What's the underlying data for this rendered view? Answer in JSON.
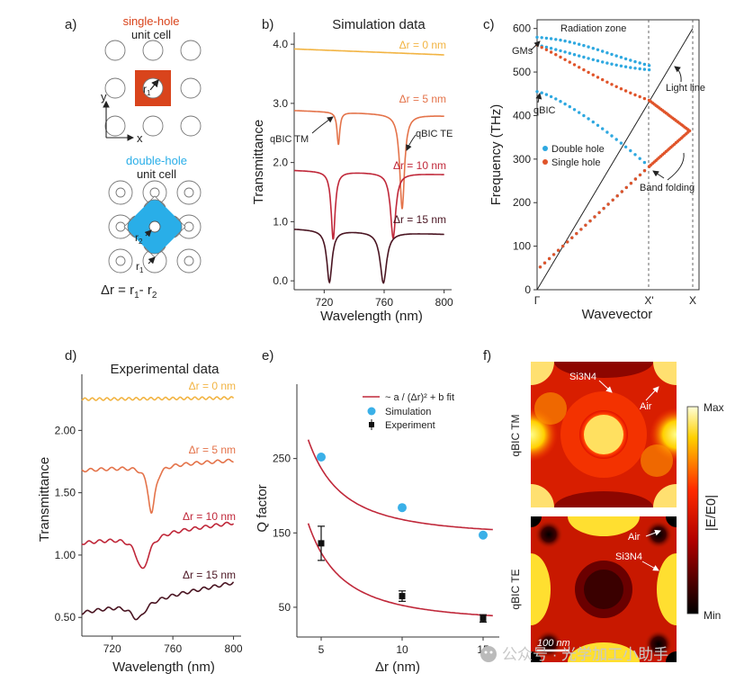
{
  "chart_data": [
    {
      "panel": "a)",
      "type": "diagram",
      "single_hole": {
        "title": "single-hole",
        "subtitle": "unit cell",
        "radius_label": "r",
        "radius_sub": "1",
        "color": "#d9441c"
      },
      "axes": {
        "x": "x",
        "y": "y"
      },
      "double_hole": {
        "title": "double-hole",
        "subtitle": "unit cell",
        "r2_label": "r",
        "r2_sub": "2",
        "r1_label": "r",
        "r1_sub": "1",
        "color": "#29aee8"
      },
      "formula": {
        "lhs": "Δr = r",
        "r1_sub": "1",
        "mid": "- r",
        "r2_sub": "2"
      }
    },
    {
      "panel": "b)",
      "type": "line",
      "title": "Simulation data",
      "xlabel": "Wavelength (nm)",
      "ylabel": "Transmittance",
      "xlim": [
        700,
        805
      ],
      "ylim": [
        -0.15,
        4.2
      ],
      "xticks": [
        "720",
        "760",
        "800"
      ],
      "yticks": [
        "0.0",
        "1.0",
        "2.0",
        "3.0",
        "4.0"
      ],
      "series": [
        {
          "name": "Δr = 0 nm",
          "color": "#f2b443",
          "base_start": 3.92,
          "base_end": 3.82,
          "dips": []
        },
        {
          "name": "Δr = 5 nm",
          "color": "#e4734a",
          "base_start": 2.88,
          "base_end": 2.79,
          "dips": [
            {
              "x": 729.5,
              "depth": 0.55,
              "width": 1.1
            },
            {
              "x": 772,
              "depth": 1.6,
              "width": 1.9
            }
          ]
        },
        {
          "name": "Δr = 10 nm",
          "color": "#c0283a",
          "base_start": 1.87,
          "base_end": 1.8,
          "dips": [
            {
              "x": 726,
              "depth": 1.15,
              "width": 1.6
            },
            {
              "x": 766,
              "depth": 1.1,
              "width": 2.1
            }
          ]
        },
        {
          "name": "Δr = 15 nm",
          "color": "#4a1522",
          "base_start": 0.88,
          "base_end": 0.79,
          "dips": [
            {
              "x": 723.5,
              "depth": 0.88,
              "width": 2.1
            },
            {
              "x": 759.5,
              "depth": 0.86,
              "width": 2.6
            }
          ]
        }
      ],
      "annotations": [
        {
          "text": "qBIC TM"
        },
        {
          "text": "qBIC TE"
        }
      ]
    },
    {
      "panel": "c)",
      "type": "scatter",
      "xlabel": "Wavevector",
      "ylabel": "Frequency (THz)",
      "xticks": [
        "Γ",
        "X'",
        "X"
      ],
      "ylim": [
        0,
        620
      ],
      "yticks": [
        "0",
        "100",
        "200",
        "300",
        "400",
        "500",
        "600"
      ],
      "series": [
        {
          "name": "Double hole",
          "color": "#2ea8e0",
          "bands": [
            {
              "k": [
                0.0,
                0.5
              ],
              "f": [
                580,
                515
              ],
              "curve": "up"
            },
            {
              "k": [
                0.0,
                0.5
              ],
              "f": [
                562,
                505
              ],
              "curve": "down"
            },
            {
              "k": [
                0.0,
                0.5
              ],
              "f": [
                455,
                283
              ],
              "curve": "flat"
            },
            {
              "k": [
                0.0,
                0.5
              ],
              "f": [
                52,
                283
              ],
              "curve": "lin"
            }
          ]
        },
        {
          "name": "Single hole",
          "color": "#e0542a",
          "bands": [
            {
              "k": [
                0.0,
                0.55
              ],
              "f": [
                562,
                435
              ],
              "curve": "down"
            },
            {
              "k": [
                0.55,
                0.85
              ],
              "f": [
                435,
                365
              ],
              "curve": "lin"
            },
            {
              "k": [
                0.0,
                0.5
              ],
              "f": [
                52,
                283
              ],
              "curve": "lin"
            },
            {
              "k": [
                0.5,
                0.85
              ],
              "f": [
                283,
                365
              ],
              "curve": "lin"
            }
          ]
        }
      ],
      "light_line": {
        "k": [
          0.0,
          1.0
        ],
        "f": [
          0,
          600
        ]
      },
      "annotations": [
        {
          "text": "Radiation zone"
        },
        {
          "text": "GMs"
        },
        {
          "text": "Light line"
        },
        {
          "text": "qBIC"
        },
        {
          "text": "Band folding"
        }
      ]
    },
    {
      "panel": "d)",
      "type": "line",
      "title": "Experimental data",
      "xlabel": "Wavelength (nm)",
      "ylabel": "Transmittance",
      "xlim": [
        700,
        805
      ],
      "ylim": [
        0.35,
        2.45
      ],
      "xticks": [
        "720",
        "760",
        "800"
      ],
      "yticks": [
        "0.50",
        "1.00",
        "1.50",
        "2.00"
      ],
      "series": [
        {
          "name": "Δr = 0 nm",
          "color": "#f2b443",
          "base_start": 2.25,
          "base_end": 2.26,
          "dips": []
        },
        {
          "name": "Δr = 5 nm",
          "color": "#e4734a",
          "base_start": 1.68,
          "base_end": 1.76,
          "dips": [
            {
              "x": 746,
              "depth": 0.38,
              "width": 2.8
            }
          ]
        },
        {
          "name": "Δr = 10 nm",
          "color": "#c0283a",
          "base_start": 1.1,
          "base_end": 1.26,
          "dips": [
            {
              "x": 740,
              "depth": 0.28,
              "width": 5
            }
          ]
        },
        {
          "name": "Δr = 15 nm",
          "color": "#4a1522",
          "base_start": 0.54,
          "base_end": 0.78,
          "dips": [
            {
              "x": 737,
              "depth": 0.14,
              "width": 6
            }
          ]
        }
      ]
    },
    {
      "panel": "e)",
      "type": "scatter",
      "xlabel": "Δr (nm)",
      "ylabel": "Q factor",
      "xlim": [
        3.5,
        16
      ],
      "ylim": [
        10,
        350
      ],
      "xticks": [
        "5",
        "10",
        "15"
      ],
      "yticks": [
        "50",
        "150",
        "250"
      ],
      "legend": [
        {
          "label": "~ a / (Δr)² + b fit"
        },
        {
          "label": "Simulation"
        },
        {
          "label": "Experiment"
        }
      ],
      "fit_color": "#c0283a",
      "simulation": {
        "color": "#3ab0e8",
        "x": [
          5,
          10,
          15
        ],
        "y": [
          252,
          184,
          147
        ]
      },
      "experiment": {
        "color": "#111111",
        "x": [
          5,
          10,
          15
        ],
        "y": [
          136,
          65,
          35
        ],
        "err": [
          23,
          7,
          5
        ]
      },
      "fits": [
        {
          "a": 2300,
          "b": 145
        },
        {
          "a": 2360,
          "b": 29
        }
      ]
    },
    {
      "panel": "f)",
      "type": "heatmap",
      "maps": [
        {
          "label": "qBIC TM",
          "material": "Si3N4",
          "air": "Air"
        },
        {
          "label": "qBIC TE",
          "material": "Si3N4",
          "air": "Air"
        }
      ],
      "colorbar": {
        "label": "|E/E0|",
        "max": "Max",
        "min": "Min"
      },
      "scalebar": "100 nm"
    }
  ],
  "watermark": "公众号 · 光学加工小助手"
}
